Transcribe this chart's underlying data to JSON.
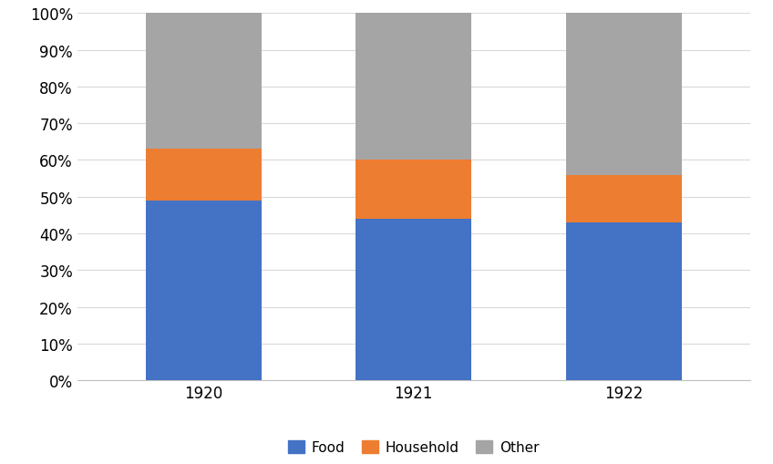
{
  "categories": [
    "1920",
    "1921",
    "1922"
  ],
  "food": [
    0.49,
    0.44,
    0.43
  ],
  "household": [
    0.14,
    0.16,
    0.13
  ],
  "other": [
    0.37,
    0.4,
    0.44
  ],
  "colors": {
    "food": "#4472C4",
    "household": "#ED7D31",
    "other": "#A5A5A5"
  },
  "legend_labels": [
    "Food",
    "Household",
    "Other"
  ],
  "yticks": [
    0.0,
    0.1,
    0.2,
    0.3,
    0.4,
    0.5,
    0.6,
    0.7,
    0.8,
    0.9,
    1.0
  ],
  "ytick_labels": [
    "0%",
    "10%",
    "20%",
    "30%",
    "40%",
    "50%",
    "60%",
    "70%",
    "80%",
    "90%",
    "100%"
  ],
  "bar_width": 0.55,
  "background_color": "#ffffff",
  "grid_color": "#d9d9d9"
}
